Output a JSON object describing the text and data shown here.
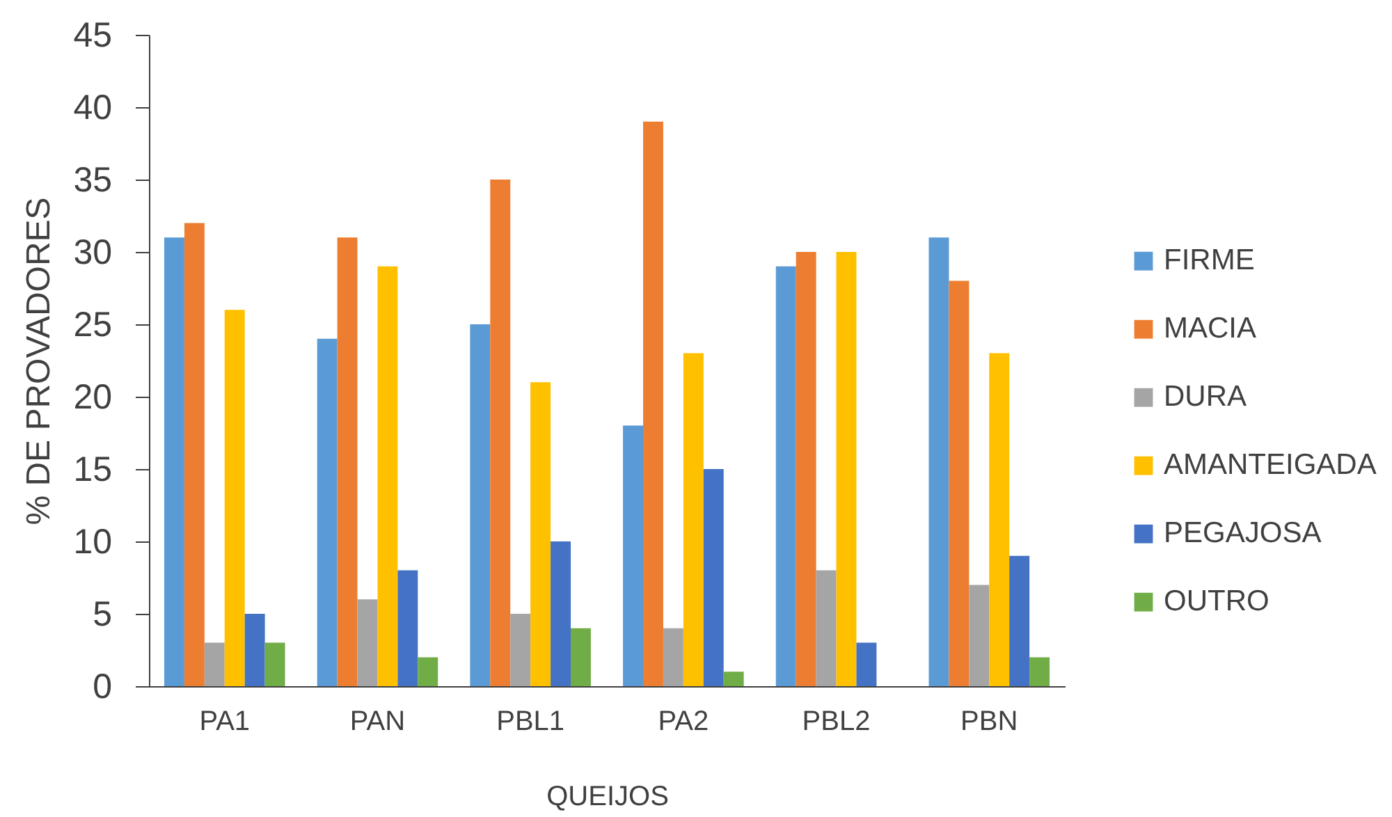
{
  "chart_data": {
    "type": "bar",
    "xlabel": "QUEIJOS",
    "ylabel": "% DE PROVADORES",
    "categories": [
      "PA1",
      "PAN",
      "PBL1",
      "PA2",
      "PBL2",
      "PBN"
    ],
    "series": [
      {
        "name": "FIRME",
        "color": "#5b9bd5",
        "values": [
          31,
          24,
          25,
          18,
          29,
          31
        ]
      },
      {
        "name": "MACIA",
        "color": "#ed7d31",
        "values": [
          32,
          31,
          35,
          39,
          30,
          28
        ]
      },
      {
        "name": "DURA",
        "color": "#a5a5a5",
        "values": [
          3,
          6,
          5,
          4,
          8,
          7
        ]
      },
      {
        "name": "AMANTEIGADA",
        "color": "#ffc000",
        "values": [
          26,
          29,
          21,
          23,
          30,
          23
        ]
      },
      {
        "name": "PEGAJOSA",
        "color": "#4472c4",
        "values": [
          5,
          8,
          10,
          15,
          3,
          9
        ]
      },
      {
        "name": "OUTRO",
        "color": "#70ad47",
        "values": [
          3,
          2,
          4,
          1,
          0,
          2
        ]
      }
    ],
    "ylim": [
      0,
      45
    ],
    "yticks": [
      0,
      5,
      10,
      15,
      20,
      25,
      30,
      35,
      40,
      45
    ],
    "grid": false,
    "legend": "right"
  }
}
